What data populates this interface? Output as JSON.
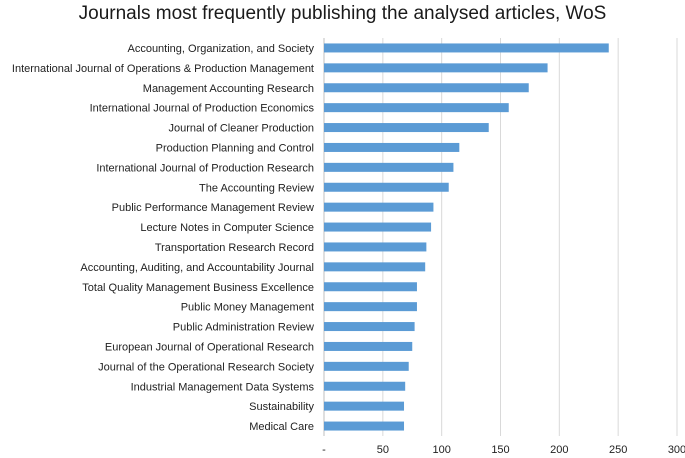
{
  "chart_data": {
    "type": "bar",
    "orientation": "horizontal",
    "title": "Journals most frequently publishing the analysed articles, WoS",
    "xlabel": "",
    "ylabel": "",
    "categories": [
      "Accounting, Organization, and Society",
      "International Journal of Operations & Production Management",
      "Management Accounting Research",
      "International Journal of Production Economics",
      "Journal of Cleaner Production",
      "Production Planning and Control",
      "International Journal of Production Research",
      "The Accounting Review",
      "Public Performance Management Review",
      "Lecture Notes in Computer Science",
      "Transportation Research Record",
      "Accounting, Auditing, and Accountability Journal",
      "Total Quality Management Business Excellence",
      "Public Money Management",
      "Public Administration Review",
      "European Journal of Operational Research",
      "Journal of the Operational Research Society",
      "Industrial Management Data Systems",
      "Sustainability",
      "Medical Care"
    ],
    "values": [
      242,
      190,
      174,
      157,
      140,
      115,
      110,
      106,
      93,
      91,
      87,
      86,
      79,
      79,
      77,
      75,
      72,
      69,
      68,
      68
    ],
    "xlim": [
      0,
      300
    ],
    "xticks": [
      "-",
      "50",
      "100",
      "150",
      "200",
      "250",
      "300"
    ],
    "grid": true,
    "bar_color": "#5b9bd5",
    "grid_color": "#d9d9d9"
  }
}
